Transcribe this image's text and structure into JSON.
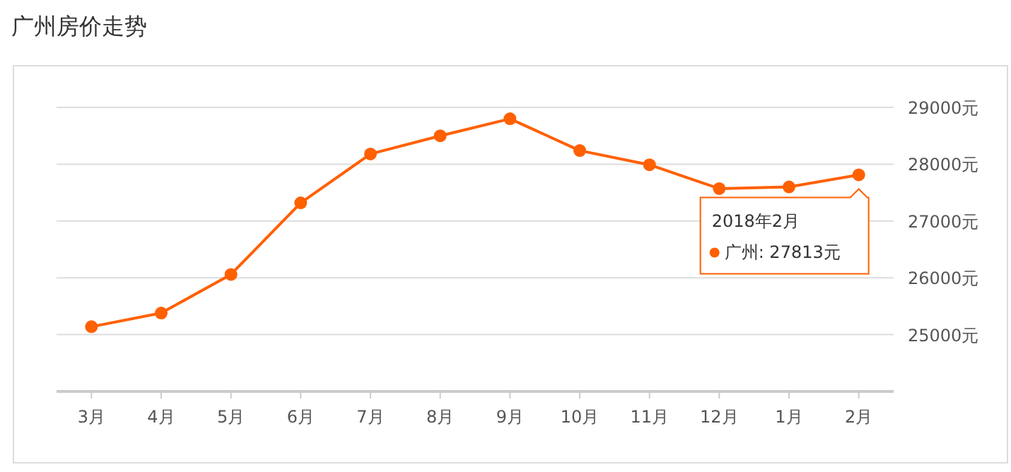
{
  "chart_data": {
    "type": "line",
    "title": "广州房价走势",
    "categories": [
      "3月",
      "4月",
      "5月",
      "6月",
      "7月",
      "8月",
      "9月",
      "10月",
      "11月",
      "12月",
      "1月",
      "2月"
    ],
    "series": [
      {
        "color": "#ff6000",
        "values": [
          25140,
          25380,
          26060,
          27320,
          28180,
          28500,
          28800,
          28240,
          27990,
          27570,
          27600,
          27813
        ]
      }
    ],
    "ylim": [
      24000,
      29000
    ],
    "yticks": [
      {
        "value": 25000,
        "label": "25000元"
      },
      {
        "value": 26000,
        "label": "26000元"
      },
      {
        "value": 27000,
        "label": "27000元"
      },
      {
        "value": 28000,
        "label": "28000元"
      },
      {
        "value": 29000,
        "label": "29000元"
      }
    ],
    "annotations": [
      "2018年2月",
      "广州: 27813元"
    ],
    "grid": "y",
    "marker": "circle",
    "line_style": "solid"
  }
}
